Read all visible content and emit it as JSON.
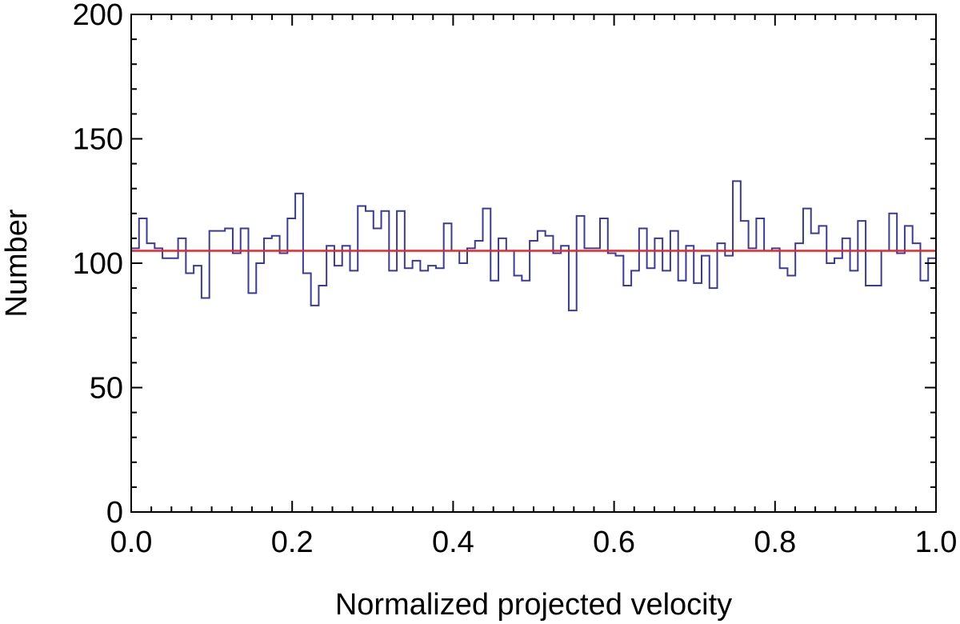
{
  "chart_data": {
    "type": "histogram",
    "title": "",
    "xlabel": "Normalized projected velocity",
    "ylabel": "Number",
    "xlim": [
      0.0,
      1.0
    ],
    "ylim": [
      0,
      200
    ],
    "x_ticks": [
      0.0,
      0.2,
      0.4,
      0.6,
      0.8,
      1.0
    ],
    "x_tick_labels": [
      "0.0",
      "0.2",
      "0.4",
      "0.6",
      "0.8",
      "1.0"
    ],
    "y_ticks": [
      0,
      50,
      100,
      150,
      200
    ],
    "y_tick_labels": [
      "0",
      "50",
      "100",
      "150",
      "200"
    ],
    "bin_width": 0.01,
    "series": [
      {
        "name": "histogram",
        "color": "#3a3a9a",
        "values": [
          106,
          118,
          108,
          106,
          102,
          102,
          110,
          96,
          99,
          86,
          113,
          113,
          114,
          104,
          114,
          88,
          100,
          110,
          111,
          104,
          118,
          128,
          96,
          83,
          91,
          107,
          99,
          107,
          97,
          123,
          121,
          114,
          121,
          97,
          121,
          98,
          101,
          97,
          99,
          98,
          116,
          105,
          100,
          106,
          109,
          122,
          93,
          110,
          105,
          95,
          93,
          109,
          113,
          111,
          104,
          107,
          81,
          119,
          106,
          106,
          118,
          104,
          103,
          91,
          97,
          114,
          98,
          110,
          97,
          113,
          93,
          107,
          92,
          103,
          90,
          108,
          103,
          133,
          117,
          106,
          118,
          105,
          106,
          98,
          95,
          108,
          122,
          112,
          115,
          100,
          102,
          110,
          97,
          117,
          91,
          91,
          105,
          120,
          104,
          115,
          108,
          93,
          102
        ]
      },
      {
        "name": "mean level",
        "color": "#e8262b",
        "type": "hline",
        "value": 105
      }
    ],
    "grid": false,
    "legend": "none"
  }
}
